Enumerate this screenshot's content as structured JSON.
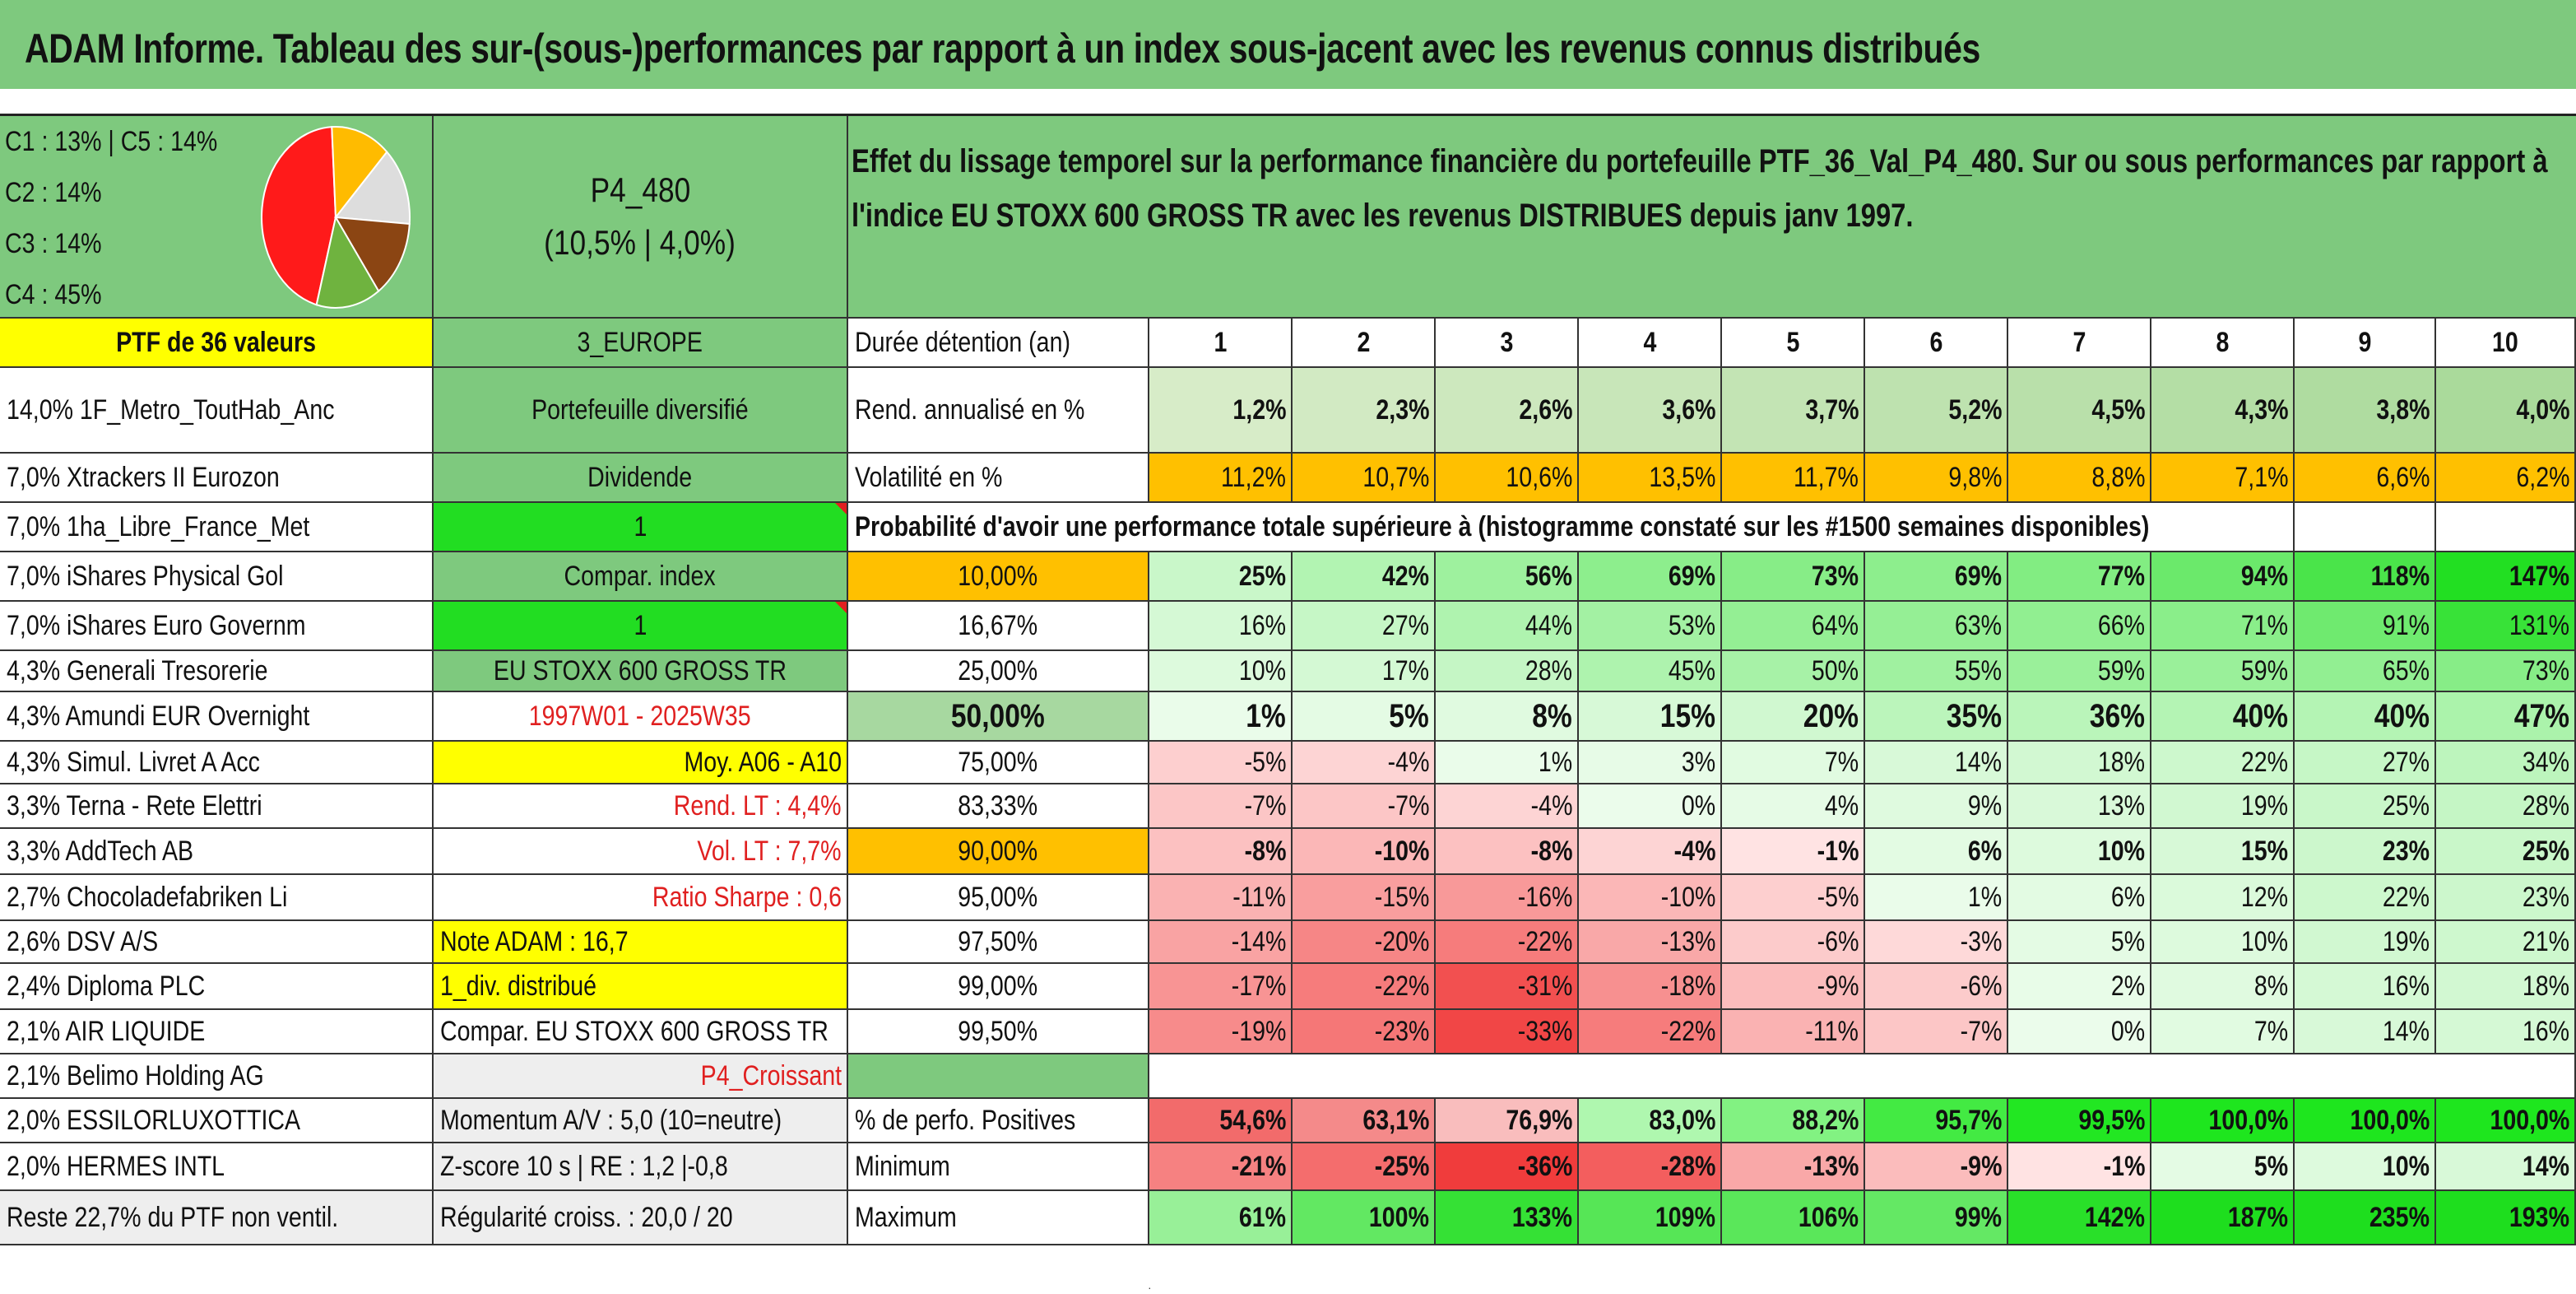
{
  "title": "ADAM Informe. Tableau des sur-(sous-)performances par rapport à un index sous-jacent avec les revenus connus distribués",
  "pie": {
    "legend": [
      "C1 : 13% | C5 : 14%",
      "C2 : 14%",
      "C3 : 14%",
      "C4 : 45%"
    ],
    "slices": [
      {
        "label": "C4",
        "value": 45,
        "color": "#ff1a1a"
      },
      {
        "label": "C1",
        "value": 13,
        "color": "#ffbb00"
      },
      {
        "label": "C5",
        "value": 14,
        "color": "#dddddd"
      },
      {
        "label": "C2",
        "value": 14,
        "color": "#8b4513"
      },
      {
        "label": "C3",
        "value": 14,
        "color": "#6fb33f"
      }
    ]
  },
  "portfolio_code": "P4_480",
  "portfolio_rates": "(10,5% | 4,0%)",
  "description": "Effet du lissage temporel sur la performance financière du portefeuille PTF_36_Val_P4_480. Sur ou sous performances par rapport à l'indice EU STOXX 600 GROSS TR avec les revenus DISTRIBUES depuis janv 1997.",
  "ptf_label": "PTF de 36 valeurs",
  "region": "3_EUROPE",
  "duration_label": "Durée détention (an)",
  "years": [
    "1",
    "2",
    "3",
    "4",
    "5",
    "6",
    "7",
    "8",
    "9",
    "10"
  ],
  "holdings": [
    "14,0% 1F_Metro_ToutHab_Anc",
    "7,0% Xtrackers II Eurozon",
    "7,0% 1ha_Libre_France_Met",
    "7,0% iShares Physical Gol",
    "7,0% iShares Euro Governm",
    "4,3% Generali Tresorerie",
    "4,3% Amundi EUR Overnight",
    "4,3% Simul. Livret A Acc",
    "3,3% Terna - Rete Elettri",
    "3,3% AddTech AB",
    "2,7% Chocoladefabriken Li",
    "2,6% DSV A/S",
    "2,4% Diploma PLC",
    "2,1% AIR LIQUIDE",
    "2,1% Belimo Holding AG",
    "2,0% ESSILORLUXOTTICA",
    "2,0% HERMES INTL",
    "Reste 22,7% du PTF non ventil."
  ],
  "info": {
    "type": "Portefeuille diversifié",
    "dividend": "Dividende",
    "one_a": "1",
    "compar_index": "Compar. index",
    "one_b": "1",
    "index_name": "EU STOXX 600 GROSS TR",
    "period": "1997W01 - 2025W35",
    "moy": "Moy. A06 - A10",
    "rend_lt": "Rend. LT : 4,4%",
    "vol_lt": "Vol. LT : 7,7%",
    "sharpe": "Ratio Sharpe : 0,6",
    "note": "Note ADAM : 16,7",
    "div": "1_div. distribué",
    "compar_full": "Compar. EU STOXX 600 GROSS TR",
    "p4": "P4_Croissant",
    "momentum": "Momentum A/V : 5,0 (10=neutre)",
    "zscore": "Z-score 10 s | RE : 1,2 |-0,8",
    "regularite": "Régularité croiss. : 20,0 / 20"
  },
  "rend_label": "Rend. annualisé en %",
  "rend": [
    "1,2%",
    "2,3%",
    "2,6%",
    "3,6%",
    "3,7%",
    "5,2%",
    "4,5%",
    "4,3%",
    "3,8%",
    "4,0%"
  ],
  "vol_label": "Volatilité en %",
  "vol": [
    "11,2%",
    "10,7%",
    "10,6%",
    "13,5%",
    "11,7%",
    "9,8%",
    "8,8%",
    "7,1%",
    "6,6%",
    "6,2%"
  ],
  "prob_title": "Probabilité d'avoir une performance totale supérieure à (histogramme constaté sur les #1500 semaines disponibles)",
  "prob_rows": [
    {
      "p": "10,00%",
      "vals": [
        "25%",
        "42%",
        "56%",
        "69%",
        "73%",
        "69%",
        "77%",
        "94%",
        "118%",
        "147%"
      ]
    },
    {
      "p": "16,67%",
      "vals": [
        "16%",
        "27%",
        "44%",
        "53%",
        "64%",
        "63%",
        "66%",
        "71%",
        "91%",
        "131%"
      ]
    },
    {
      "p": "25,00%",
      "vals": [
        "10%",
        "17%",
        "28%",
        "45%",
        "50%",
        "55%",
        "59%",
        "59%",
        "65%",
        "73%"
      ]
    },
    {
      "p": "50,00%",
      "vals": [
        "1%",
        "5%",
        "8%",
        "15%",
        "20%",
        "35%",
        "36%",
        "40%",
        "40%",
        "47%"
      ]
    },
    {
      "p": "75,00%",
      "vals": [
        "-5%",
        "-4%",
        "1%",
        "3%",
        "7%",
        "14%",
        "18%",
        "22%",
        "27%",
        "34%"
      ]
    },
    {
      "p": "83,33%",
      "vals": [
        "-7%",
        "-7%",
        "-4%",
        "0%",
        "4%",
        "9%",
        "13%",
        "19%",
        "25%",
        "28%"
      ]
    },
    {
      "p": "90,00%",
      "vals": [
        "-8%",
        "-10%",
        "-8%",
        "-4%",
        "-1%",
        "6%",
        "10%",
        "15%",
        "23%",
        "25%"
      ]
    },
    {
      "p": "95,00%",
      "vals": [
        "-11%",
        "-15%",
        "-16%",
        "-10%",
        "-5%",
        "1%",
        "6%",
        "12%",
        "22%",
        "23%"
      ]
    },
    {
      "p": "97,50%",
      "vals": [
        "-14%",
        "-20%",
        "-22%",
        "-13%",
        "-6%",
        "-3%",
        "5%",
        "10%",
        "19%",
        "21%"
      ]
    },
    {
      "p": "99,00%",
      "vals": [
        "-17%",
        "-22%",
        "-31%",
        "-18%",
        "-9%",
        "-6%",
        "2%",
        "8%",
        "16%",
        "18%"
      ]
    },
    {
      "p": "99,50%",
      "vals": [
        "-19%",
        "-23%",
        "-33%",
        "-22%",
        "-11%",
        "-7%",
        "0%",
        "7%",
        "14%",
        "16%"
      ]
    }
  ],
  "pos_label": "% de perfo. Positives",
  "pos": [
    "54,6%",
    "63,1%",
    "76,9%",
    "83,0%",
    "88,2%",
    "95,7%",
    "99,5%",
    "100,0%",
    "100,0%",
    "100,0%"
  ],
  "min_label": "Minimum",
  "min": [
    "-21%",
    "-25%",
    "-36%",
    "-28%",
    "-13%",
    "-9%",
    "-1%",
    "5%",
    "10%",
    "14%"
  ],
  "max_label": "Maximum",
  "max": [
    "61%",
    "100%",
    "133%",
    "109%",
    "106%",
    "99%",
    "142%",
    "187%",
    "235%",
    "193%"
  ],
  "colors": {
    "banner": "#7ec97e",
    "yellow": "#ffff00",
    "orange": "#ffc000",
    "bright_green": "#22dd22",
    "red_text": "#e02020"
  }
}
